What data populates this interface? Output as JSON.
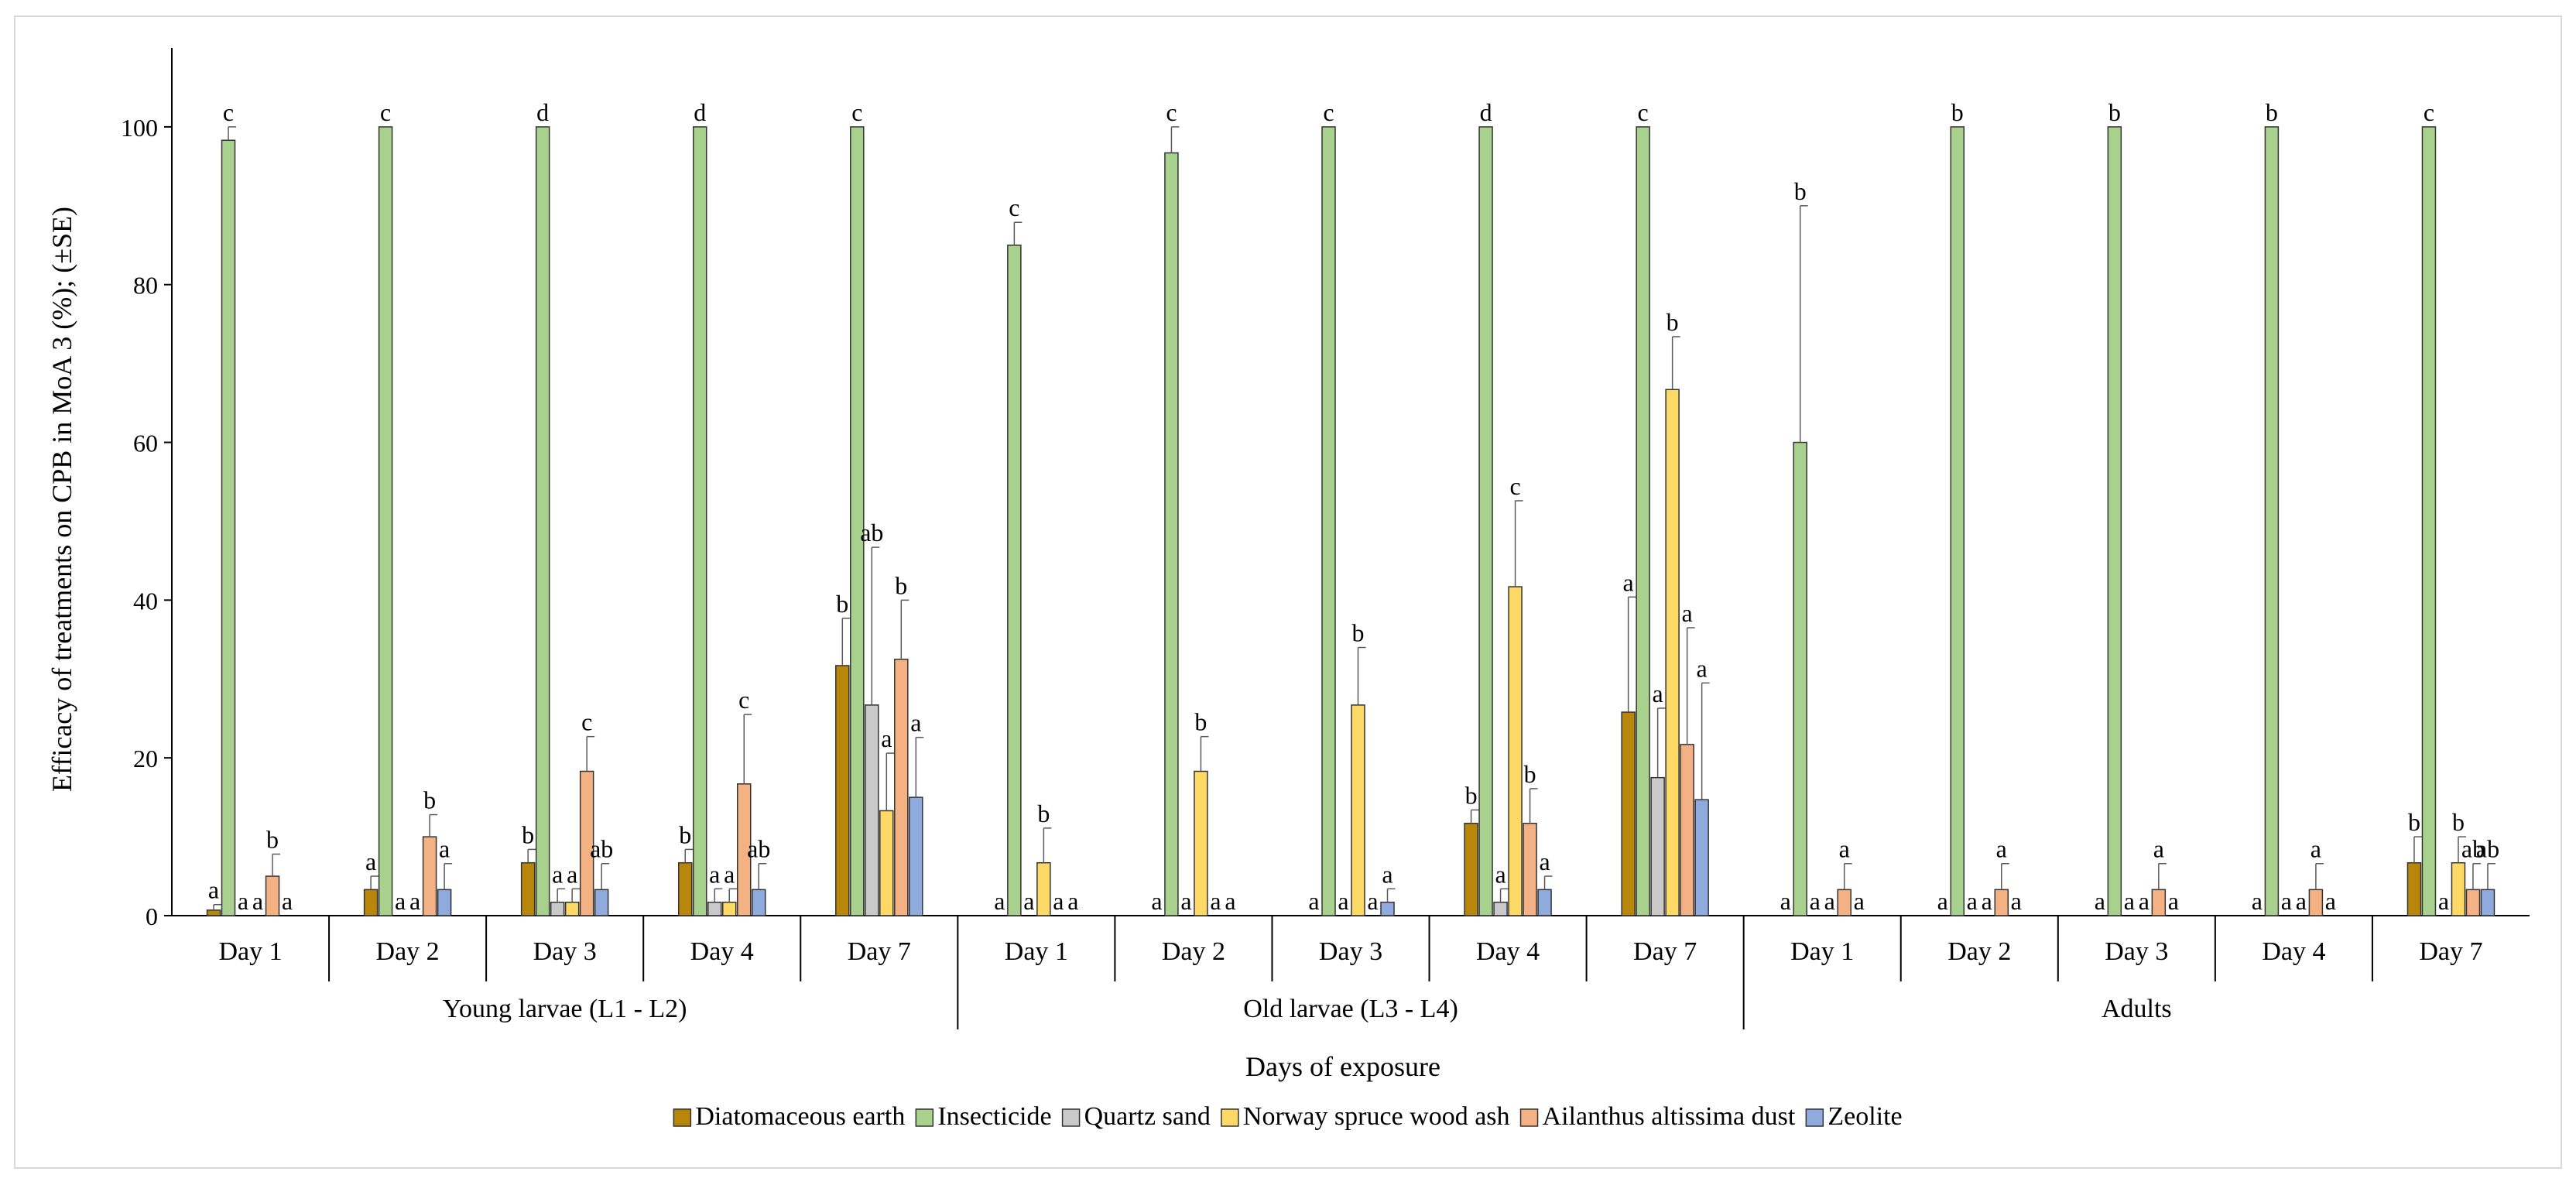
{
  "chart_data": {
    "type": "bar",
    "ylabel": "Efficacy of treatments on CPB in MoA 3 (%); (±SE)",
    "xlabel": "Days of exposure",
    "ylim": [
      0,
      110
    ],
    "yticks": [
      0,
      20,
      40,
      60,
      80,
      100
    ],
    "days": [
      "Day 1",
      "Day 2",
      "Day 3",
      "Day 4",
      "Day 7"
    ],
    "series": [
      {
        "name": "Diatomaceous earth",
        "color": "#b8860b"
      },
      {
        "name": "Insecticide",
        "color": "#a9d18e"
      },
      {
        "name": "Quartz sand",
        "color": "#c9c9c9"
      },
      {
        "name": "Norway spruce wood ash",
        "color": "#ffd966"
      },
      {
        "name": "Ailanthus altissima dust",
        "color": "#f4b183"
      },
      {
        "name": "Zeolite",
        "color": "#8faadc"
      }
    ],
    "groups": [
      {
        "name": "Young larvae (L1 - L2)",
        "days": [
          {
            "values": [
              0.7,
              98.3,
              0,
              0,
              5,
              0
            ],
            "errors": [
              0.7,
              1.7,
              0,
              0,
              2.8,
              0
            ],
            "letters": [
              "a",
              "c",
              "a",
              "a",
              "b",
              "a"
            ]
          },
          {
            "values": [
              3.3,
              100,
              0,
              0,
              10,
              3.3
            ],
            "errors": [
              1.7,
              0,
              0,
              0,
              2.8,
              3.3
            ],
            "letters": [
              "a",
              "c",
              "a",
              "a",
              "b",
              "a"
            ]
          },
          {
            "values": [
              6.7,
              100,
              1.7,
              1.7,
              18.3,
              3.3
            ],
            "errors": [
              1.7,
              0,
              1.7,
              1.7,
              4.4,
              3.3
            ],
            "letters": [
              "b",
              "d",
              "a",
              "a",
              "c",
              "ab"
            ]
          },
          {
            "values": [
              6.7,
              100,
              1.7,
              1.7,
              16.7,
              3.3
            ],
            "errors": [
              1.7,
              0,
              1.7,
              1.7,
              8.8,
              3.3
            ],
            "letters": [
              "b",
              "d",
              "a",
              "a",
              "c",
              "ab"
            ]
          },
          {
            "values": [
              31.7,
              100,
              26.7,
              13.3,
              32.5,
              15
            ],
            "errors": [
              6,
              0,
              20,
              7.3,
              7.5,
              7.6
            ],
            "letters": [
              "b",
              "c",
              "ab",
              "a",
              "b",
              "a"
            ]
          }
        ]
      },
      {
        "name": "Old larvae (L3 - L4)",
        "days": [
          {
            "values": [
              0,
              85,
              0,
              6.7,
              0,
              0
            ],
            "errors": [
              0,
              2.9,
              0,
              4.4,
              0,
              0
            ],
            "letters": [
              "a",
              "c",
              "a",
              "b",
              "a",
              "a"
            ]
          },
          {
            "values": [
              0,
              96.7,
              0,
              18.3,
              0,
              0
            ],
            "errors": [
              0,
              3.3,
              0,
              4.4,
              0,
              0
            ],
            "letters": [
              "a",
              "c",
              "a",
              "b",
              "a",
              "a"
            ]
          },
          {
            "values": [
              0,
              100,
              0,
              26.7,
              0,
              1.7
            ],
            "errors": [
              0,
              0,
              0,
              7.3,
              0,
              1.7
            ],
            "letters": [
              "a",
              "c",
              "a",
              "b",
              "a",
              "a"
            ]
          },
          {
            "values": [
              11.7,
              100,
              1.7,
              41.7,
              11.7,
              3.3
            ],
            "errors": [
              1.7,
              0,
              1.7,
              10.9,
              4.4,
              1.7
            ],
            "letters": [
              "b",
              "d",
              "a",
              "c",
              "b",
              "a"
            ]
          },
          {
            "values": [
              25.8,
              100,
              17.5,
              66.7,
              21.7,
              14.7
            ],
            "errors": [
              14.6,
              0,
              8.8,
              6.7,
              14.8,
              14.8
            ],
            "letters": [
              "a",
              "c",
              "a",
              "b",
              "a",
              "a"
            ]
          }
        ]
      },
      {
        "name": "Adults",
        "days": [
          {
            "values": [
              0,
              60,
              0,
              0,
              3.3,
              0
            ],
            "errors": [
              0,
              30,
              0,
              0,
              3.3,
              0
            ],
            "letters": [
              "a",
              "b",
              "a",
              "a",
              "a",
              "a"
            ]
          },
          {
            "values": [
              0,
              100,
              0,
              0,
              3.3,
              0
            ],
            "errors": [
              0,
              0,
              0,
              0,
              3.3,
              0
            ],
            "letters": [
              "a",
              "b",
              "a",
              "a",
              "a",
              "a"
            ]
          },
          {
            "values": [
              0,
              100,
              0,
              0,
              3.3,
              0
            ],
            "errors": [
              0,
              0,
              0,
              0,
              3.3,
              0
            ],
            "letters": [
              "a",
              "b",
              "a",
              "a",
              "a",
              "a"
            ]
          },
          {
            "values": [
              0,
              100,
              0,
              0,
              3.3,
              0
            ],
            "errors": [
              0,
              0,
              0,
              0,
              3.3,
              0
            ],
            "letters": [
              "a",
              "b",
              "a",
              "a",
              "a",
              "a"
            ]
          },
          {
            "values": [
              6.7,
              100,
              0,
              6.7,
              3.3,
              3.3
            ],
            "errors": [
              3.3,
              0,
              0,
              3.3,
              3.3,
              3.3
            ],
            "letters": [
              "b",
              "c",
              "a",
              "b",
              "ab",
              "ab"
            ]
          }
        ]
      }
    ]
  }
}
